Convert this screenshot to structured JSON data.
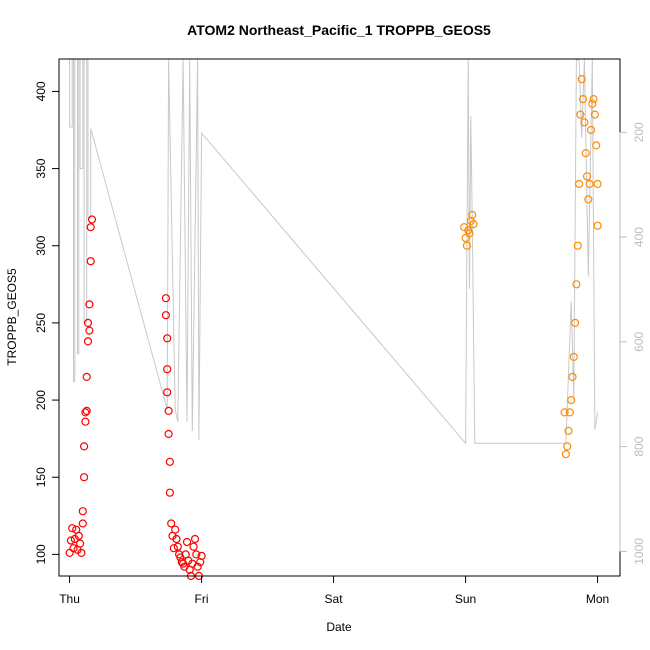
{
  "chart_data": {
    "type": "scatter",
    "title": "ATOM2 Northeast_Pacific_1 TROPPB_GEOS5",
    "xlabel": "Date",
    "ylabel": "TROPPB_GEOS5",
    "x_unit": "days",
    "xlim": [
      -0.08,
      4.17
    ],
    "ylim": [
      86,
      421
    ],
    "x_ticks": [
      {
        "value": 0,
        "label": "Thu"
      },
      {
        "value": 1,
        "label": "Fri"
      },
      {
        "value": 2,
        "label": "Sat"
      },
      {
        "value": 3,
        "label": "Sun"
      },
      {
        "value": 4,
        "label": "Mon"
      }
    ],
    "y_ticks": [
      100,
      150,
      200,
      250,
      300,
      350,
      400
    ],
    "right_axis": {
      "ylim": [
        1047,
        60
      ],
      "ticks": [
        200,
        400,
        600,
        800,
        1000
      ],
      "color": "#bdbdbd"
    },
    "grid": false,
    "legend": "none",
    "series": [
      {
        "color": "#ff0000",
        "marker": "open-circle",
        "x": [
          0.0,
          0.01,
          0.02,
          0.03,
          0.04,
          0.05,
          0.06,
          0.07,
          0.08,
          0.09,
          0.1,
          0.1,
          0.11,
          0.11,
          0.12,
          0.12,
          0.13,
          0.13,
          0.14,
          0.14,
          0.15,
          0.15,
          0.16,
          0.16,
          0.17,
          0.73,
          0.73,
          0.74,
          0.74,
          0.74,
          0.75,
          0.75,
          0.76,
          0.76,
          0.77,
          0.78,
          0.79,
          0.8,
          0.81,
          0.82,
          0.83,
          0.84,
          0.85,
          0.86,
          0.87,
          0.88,
          0.89,
          0.9,
          0.91,
          0.92,
          0.93,
          0.94,
          0.95,
          0.96,
          0.97,
          0.98,
          0.99,
          1.0
        ],
        "y": [
          101,
          109,
          117,
          104,
          110,
          116,
          103,
          112,
          107,
          101,
          120,
          128,
          150,
          170,
          186,
          192,
          193,
          215,
          238,
          250,
          262,
          245,
          290,
          312,
          317,
          266,
          255,
          240,
          220,
          205,
          193,
          178,
          160,
          140,
          120,
          112,
          104,
          116,
          110,
          105,
          100,
          98,
          95,
          94,
          92,
          100,
          108,
          96,
          90,
          86,
          94,
          105,
          110,
          100,
          92,
          86,
          95,
          99
        ]
      },
      {
        "color": "#ff8c00",
        "marker": "open-circle",
        "x": [
          2.99,
          3.0,
          3.01,
          3.02,
          3.03,
          3.04,
          3.05,
          3.06,
          3.75,
          3.76,
          3.77,
          3.78,
          3.79,
          3.8,
          3.81,
          3.82,
          3.83,
          3.84,
          3.85,
          3.86,
          3.87,
          3.88,
          3.89,
          3.9,
          3.91,
          3.92,
          3.93,
          3.94,
          3.95,
          3.96,
          3.97,
          3.98,
          3.99,
          4.0,
          4.0
        ],
        "y": [
          312,
          305,
          300,
          310,
          308,
          316,
          320,
          314,
          192,
          165,
          170,
          180,
          192,
          200,
          215,
          228,
          250,
          275,
          300,
          340,
          385,
          408,
          395,
          380,
          360,
          345,
          330,
          340,
          375,
          392,
          395,
          385,
          365,
          340,
          313
        ]
      }
    ],
    "background_line": {
      "color": "#c8c8c8",
      "x": [
        0.0,
        0.0,
        0.01,
        0.02,
        0.02,
        0.03,
        0.03,
        0.04,
        0.04,
        0.05,
        0.06,
        0.06,
        0.07,
        0.07,
        0.08,
        0.08,
        0.1,
        0.1,
        0.11,
        0.11,
        0.13,
        0.13,
        0.14,
        0.14,
        0.16,
        0.16,
        0.74,
        0.74,
        0.75,
        0.75,
        0.8,
        0.8,
        0.82,
        0.82,
        0.86,
        0.86,
        0.89,
        0.89,
        0.91,
        0.91,
        0.93,
        0.93,
        0.97,
        0.97,
        0.98,
        0.98,
        1.0,
        1.0,
        3.0,
        3.0,
        3.02,
        3.02,
        3.03,
        3.03,
        3.04,
        3.04,
        3.05,
        3.05,
        3.07,
        3.07,
        3.76,
        3.76,
        3.79,
        3.79,
        3.8,
        3.8,
        3.82,
        3.82,
        3.84,
        3.84,
        3.86,
        3.86,
        3.88,
        3.88,
        3.9,
        3.9,
        3.93,
        3.93,
        3.96,
        3.96,
        3.98,
        3.98,
        4.0
      ],
      "y": [
        421,
        377,
        377,
        377,
        421,
        421,
        212,
        212,
        421,
        421,
        421,
        230,
        230,
        421,
        421,
        350,
        350,
        421,
        421,
        250,
        250,
        421,
        421,
        318,
        318,
        376,
        194,
        194,
        421,
        421,
        194,
        194,
        186,
        186,
        421,
        421,
        186,
        186,
        421,
        421,
        180,
        180,
        421,
        421,
        174,
        174,
        373,
        373,
        172,
        172,
        421,
        421,
        272,
        272,
        384,
        384,
        320,
        320,
        172,
        172,
        172,
        172,
        240,
        240,
        264,
        264,
        200,
        200,
        421,
        421,
        420,
        420,
        370,
        370,
        421,
        421,
        280,
        280,
        421,
        421,
        181,
        181,
        192
      ]
    }
  }
}
